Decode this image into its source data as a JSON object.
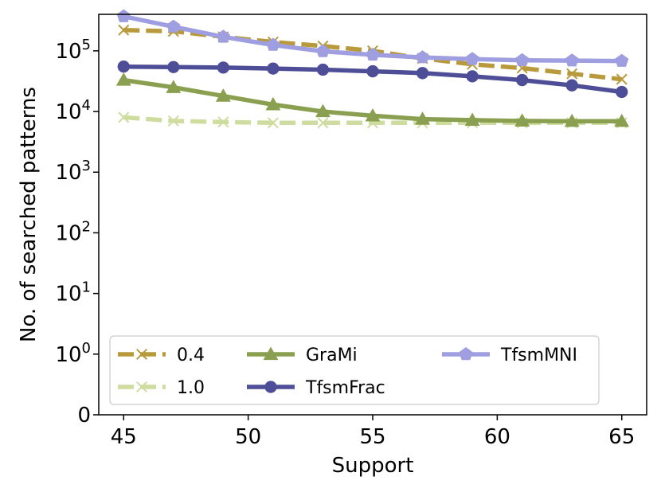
{
  "chart_data": {
    "type": "line",
    "title": "",
    "xlabel": "Support",
    "ylabel": "No. of searched patterns",
    "yscale": "symlog",
    "xlim": [
      44,
      66
    ],
    "ylim": [
      0,
      400000
    ],
    "x_ticks": [
      45,
      50,
      55,
      60,
      65
    ],
    "x_tick_labels": [
      "45",
      "50",
      "55",
      "60",
      "65"
    ],
    "y_ticks": [
      {
        "value": 0,
        "base": "0",
        "exp": ""
      },
      {
        "value": 1,
        "base": "10",
        "exp": "0"
      },
      {
        "value": 10,
        "base": "10",
        "exp": "1"
      },
      {
        "value": 100,
        "base": "10",
        "exp": "2"
      },
      {
        "value": 1000,
        "base": "10",
        "exp": "3"
      },
      {
        "value": 10000,
        "base": "10",
        "exp": "4"
      },
      {
        "value": 100000,
        "base": "10",
        "exp": "5"
      }
    ],
    "x": [
      45,
      47,
      49,
      51,
      53,
      55,
      57,
      59,
      61,
      63,
      65
    ],
    "legend_position": "lower-left",
    "series": [
      {
        "name": "0.4",
        "color": "#b89a3c",
        "dash": "dashed",
        "marker": "x",
        "values": [
          220000,
          210000,
          170000,
          140000,
          120000,
          100000,
          75000,
          60000,
          52000,
          42000,
          34000
        ]
      },
      {
        "name": "1.0",
        "color": "#cfdc9f",
        "dash": "dashed",
        "marker": "x",
        "values": [
          8000,
          7000,
          6700,
          6500,
          6500,
          6500,
          6500,
          6500,
          6500,
          6500,
          6500
        ]
      },
      {
        "name": "GraMi",
        "color": "#8aa050",
        "dash": "solid",
        "marker": "triangle",
        "values": [
          33000,
          25000,
          18000,
          13000,
          10000,
          8500,
          7500,
          7200,
          7000,
          6900,
          6900
        ]
      },
      {
        "name": "TfsmFrac",
        "color": "#4e4e98",
        "dash": "solid",
        "marker": "circle",
        "values": [
          55000,
          54000,
          53000,
          51000,
          49000,
          46000,
          43000,
          38000,
          33000,
          27000,
          21000
        ]
      },
      {
        "name": "TfsmMNI",
        "color": "#9e9ee0",
        "dash": "solid",
        "marker": "pentagon",
        "values": [
          370000,
          250000,
          170000,
          125000,
          98000,
          86000,
          78000,
          73000,
          70000,
          69000,
          68000
        ]
      }
    ]
  }
}
